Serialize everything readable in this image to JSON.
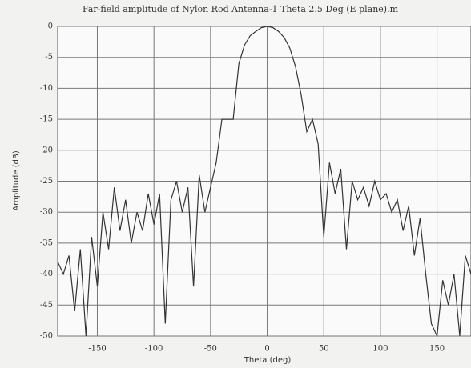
{
  "chart_data": {
    "type": "line",
    "title": "Far-field amplitude of Nylon Rod Antenna-1   Theta 2.5 Deg (E plane).m",
    "x_label": "Theta (deg)",
    "y_label": "Amplitude (dB)",
    "x": [
      -185,
      -180,
      -175,
      -170,
      -165,
      -160,
      -155,
      -150,
      -145,
      -140,
      -135,
      -130,
      -125,
      -120,
      -115,
      -110,
      -105,
      -100,
      -95,
      -90,
      -85,
      -80,
      -75,
      -70,
      -65,
      -60,
      -55,
      -50,
      -45,
      -40,
      -35,
      -30,
      -25,
      -20,
      -15,
      -10,
      -5,
      0,
      5,
      10,
      15,
      20,
      25,
      30,
      35,
      40,
      45,
      50,
      55,
      60,
      65,
      70,
      75,
      80,
      85,
      90,
      95,
      100,
      105,
      110,
      115,
      120,
      125,
      130,
      135,
      140,
      145,
      150,
      155,
      160,
      165,
      170,
      175,
      180
    ],
    "series": [
      {
        "name": "Amplitude",
        "color": "#333333",
        "values": [
          -38,
          -40,
          -37,
          -46,
          -36,
          -50,
          -34,
          -42,
          -30,
          -36,
          -26,
          -33,
          -28,
          -35,
          -30,
          -33,
          -27,
          -32,
          -27,
          -48,
          -28,
          -25,
          -30,
          -26,
          -42,
          -24,
          -30,
          -26,
          -22,
          -15,
          -15,
          -15,
          -6,
          -3,
          -1.5,
          -0.8,
          -0.2,
          0,
          -0.2,
          -0.8,
          -1.8,
          -3.5,
          -6.5,
          -11,
          -17,
          -15,
          -19,
          -34,
          -22,
          -27,
          -23,
          -36,
          -25,
          -28,
          -26,
          -29,
          -25,
          -28,
          -27,
          -30,
          -28,
          -33,
          -29,
          -37,
          -31,
          -40,
          -48,
          -50,
          -41,
          -45,
          -40,
          -50,
          -37,
          -40
        ]
      }
    ],
    "xlim": [
      -185,
      180
    ],
    "ylim": [
      -50,
      0
    ],
    "xticks": [
      -150,
      -100,
      -50,
      0,
      50,
      100,
      150
    ],
    "yticks": [
      0,
      -5,
      -10,
      -15,
      -20,
      -25,
      -30,
      -35,
      -40,
      -45,
      -50
    ],
    "grid": true
  }
}
